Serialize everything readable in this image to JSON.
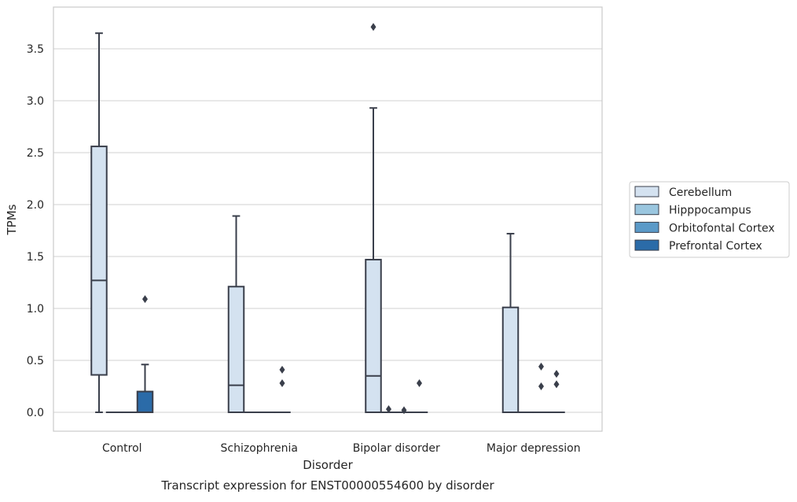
{
  "chart_data": {
    "type": "box",
    "caption": "Transcript expression for ENST00000554600 by disorder",
    "xlabel": "Disorder",
    "ylabel": "TPMs",
    "ylim": [
      -0.18,
      3.9
    ],
    "yticks": [
      0.0,
      0.5,
      1.0,
      1.5,
      2.0,
      2.5,
      3.0,
      3.5
    ],
    "ytick_labels": [
      "0.0",
      "0.5",
      "1.0",
      "1.5",
      "2.0",
      "2.5",
      "3.0",
      "3.5"
    ],
    "grid": "horizontal",
    "legend_position": "right",
    "categories": [
      "Control",
      "Schizophrenia",
      "Bipolar disorder",
      "Major depression"
    ],
    "series": [
      {
        "name": "Cerebellum",
        "color": "#d4e2f0",
        "boxes": [
          {
            "whislo": 0.0,
            "q1": 0.36,
            "med": 1.27,
            "q3": 2.56,
            "whishi": 3.65,
            "fliers": []
          },
          {
            "whislo": 0.0,
            "q1": 0.0,
            "med": 0.26,
            "q3": 1.21,
            "whishi": 1.89,
            "fliers": []
          },
          {
            "whislo": 0.0,
            "q1": 0.0,
            "med": 0.35,
            "q3": 1.47,
            "whishi": 2.93,
            "fliers": [
              3.71
            ]
          },
          {
            "whislo": 0.0,
            "q1": 0.0,
            "med": 0.0,
            "q3": 1.01,
            "whishi": 1.72,
            "fliers": []
          }
        ]
      },
      {
        "name": "Hipppocampus",
        "color": "#9ac6df",
        "boxes": [
          {
            "whislo": 0.0,
            "q1": 0.0,
            "med": 0.0,
            "q3": 0.0,
            "whishi": 0.0,
            "fliers": []
          },
          {
            "whislo": 0.0,
            "q1": 0.0,
            "med": 0.0,
            "q3": 0.0,
            "whishi": 0.0,
            "fliers": []
          },
          {
            "whislo": 0.0,
            "q1": 0.0,
            "med": 0.0,
            "q3": 0.0,
            "whishi": 0.0,
            "fliers": [
              0.03
            ]
          },
          {
            "whislo": 0.0,
            "q1": 0.0,
            "med": 0.0,
            "q3": 0.0,
            "whishi": 0.0,
            "fliers": []
          }
        ]
      },
      {
        "name": "Orbitofontal Cortex",
        "color": "#5b9ac8",
        "boxes": [
          {
            "whislo": 0.0,
            "q1": 0.0,
            "med": 0.0,
            "q3": 0.0,
            "whishi": 0.0,
            "fliers": []
          },
          {
            "whislo": 0.0,
            "q1": 0.0,
            "med": 0.0,
            "q3": 0.0,
            "whishi": 0.0,
            "fliers": []
          },
          {
            "whislo": 0.0,
            "q1": 0.0,
            "med": 0.0,
            "q3": 0.0,
            "whishi": 0.0,
            "fliers": [
              0.02
            ]
          },
          {
            "whislo": 0.0,
            "q1": 0.0,
            "med": 0.0,
            "q3": 0.0,
            "whishi": 0.0,
            "fliers": [
              0.25,
              0.44
            ]
          }
        ]
      },
      {
        "name": "Prefrontal Cortex",
        "color": "#2b6ba8",
        "boxes": [
          {
            "whislo": 0.0,
            "q1": 0.0,
            "med": 0.0,
            "q3": 0.2,
            "whishi": 0.46,
            "fliers": [
              1.09
            ]
          },
          {
            "whislo": 0.0,
            "q1": 0.0,
            "med": 0.0,
            "q3": 0.0,
            "whishi": 0.0,
            "fliers": [
              0.28,
              0.41
            ]
          },
          {
            "whislo": 0.0,
            "q1": 0.0,
            "med": 0.0,
            "q3": 0.0,
            "whishi": 0.0,
            "fliers": [
              0.28
            ]
          },
          {
            "whislo": 0.0,
            "q1": 0.0,
            "med": 0.0,
            "q3": 0.0,
            "whishi": 0.0,
            "fliers": [
              0.27,
              0.37
            ]
          }
        ]
      }
    ]
  }
}
